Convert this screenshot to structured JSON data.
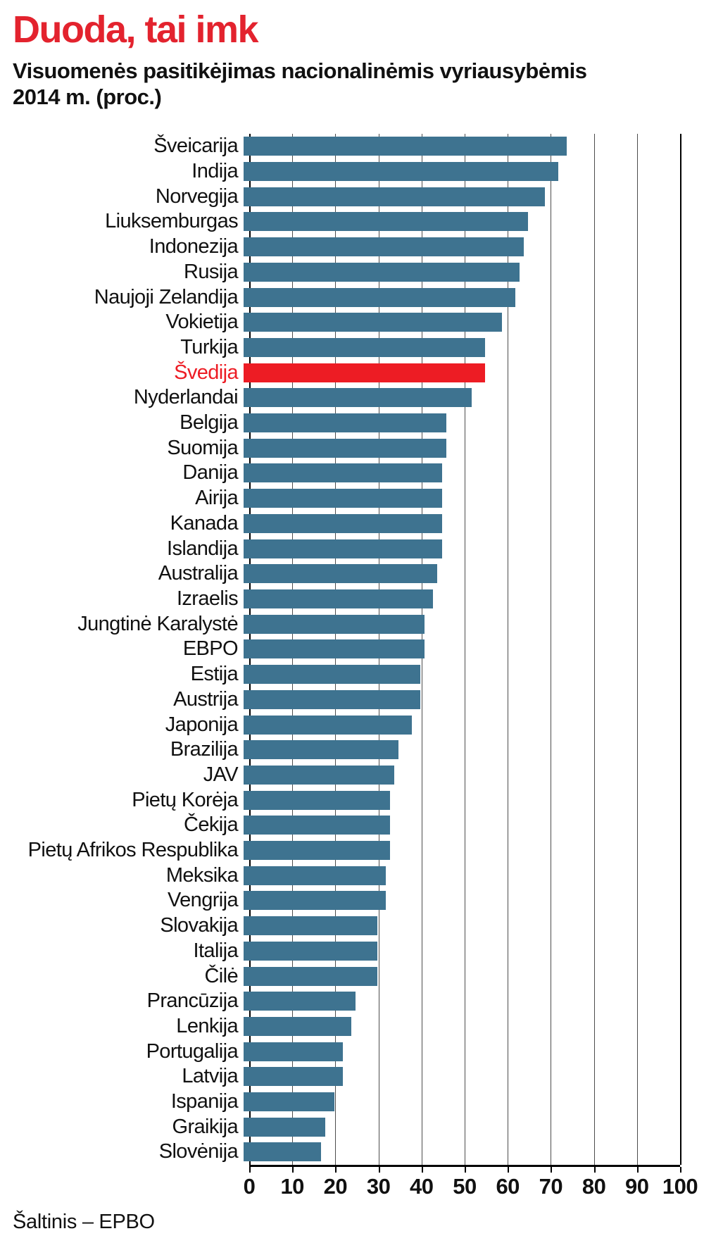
{
  "page": {
    "title": "Duoda, tai imk",
    "subtitle_line1": "Visuomenės pasitikėjimas nacionalinėmis vyriausybėmis",
    "subtitle_line2": "2014 m. (proc.)",
    "source": "Šaltinis – EPBO"
  },
  "colors": {
    "title_red": "#e3232e",
    "accent_red": "#ed1c24",
    "bar_teal": "#3e7390",
    "gridline": "#4d4d4d",
    "axis": "#000000",
    "text": "#111111"
  },
  "chart_data": {
    "type": "bar",
    "orientation": "horizontal",
    "title": "Duoda, tai imk",
    "subtitle": "Visuomenės pasitikėjimas nacionalinėmis vyriausybėmis 2014 m. (proc.)",
    "xlabel": "",
    "ylabel": "",
    "xlim": [
      0,
      100
    ],
    "x_ticks": [
      0,
      10,
      20,
      30,
      40,
      50,
      60,
      70,
      80,
      90,
      100
    ],
    "grid": true,
    "legend": "none",
    "highlight_category": "Švedija",
    "highlight_color": "#ed1c24",
    "bar_color": "#3e7390",
    "source": "Šaltinis – EPBO",
    "categories": [
      "Šveicarija",
      "Indija",
      "Norvegija",
      "Liuksemburgas",
      "Indonezija",
      "Rusija",
      "Naujoji Zelandija",
      "Vokietija",
      "Turkija",
      "Švedija",
      "Nyderlandai",
      "Belgija",
      "Suomija",
      "Danija",
      "Airija",
      "Kanada",
      "Islandija",
      "Australija",
      "Izraelis",
      "Jungtinė Karalystė",
      "EBPO",
      "Estija",
      "Austrija",
      "Japonija",
      "Brazilija",
      "JAV",
      "Pietų Korėja",
      "Čekija",
      "Pietų Afrikos Respublika",
      "Meksika",
      "Vengrija",
      "Slovakija",
      "Italija",
      "Čilė",
      "Prancūzija",
      "Lenkija",
      "Portugalija",
      "Latvija",
      "Ispanija",
      "Graikija",
      "Slovėnija"
    ],
    "values": [
      75,
      73,
      70,
      66,
      65,
      64,
      63,
      60,
      56,
      56,
      53,
      47,
      47,
      46,
      46,
      46,
      46,
      45,
      44,
      42,
      42,
      41,
      41,
      39,
      36,
      35,
      34,
      34,
      34,
      33,
      33,
      31,
      31,
      31,
      26,
      25,
      23,
      23,
      21,
      19,
      18
    ]
  }
}
